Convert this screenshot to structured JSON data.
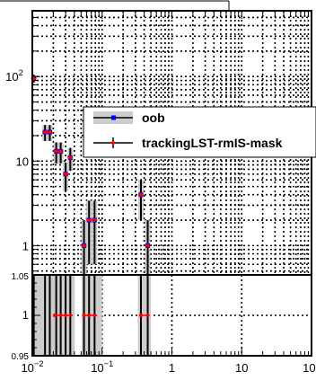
{
  "chart_data": [
    {
      "type": "scatter",
      "title": "",
      "xlabel": "",
      "ylabel": "",
      "x_scale": "log",
      "y_scale": "log",
      "xlim": [
        0.01,
        100
      ],
      "ylim": [
        0.45,
        600
      ],
      "grid": true,
      "legend_placement": "right",
      "y_tick_labels": [
        {
          "value": 1,
          "label": "1"
        },
        {
          "value": 10,
          "label": "10"
        },
        {
          "value": 100,
          "label": "10",
          "exp": "2"
        }
      ],
      "series": [
        {
          "name": "oob",
          "color": "#0000ff",
          "style": "marker-filled-band",
          "points": [
            {
              "x": 0.0105,
              "y": 95,
              "err": 10
            },
            {
              "x": 0.0152,
              "y": 22,
              "err": 4.7
            },
            {
              "x": 0.0178,
              "y": 22,
              "err": 4.7
            },
            {
              "x": 0.022,
              "y": 13,
              "err": 3.6
            },
            {
              "x": 0.0255,
              "y": 13,
              "err": 3.6
            },
            {
              "x": 0.03,
              "y": 7,
              "err": 2.6
            },
            {
              "x": 0.035,
              "y": 11,
              "err": 3.3
            },
            {
              "x": 0.055,
              "y": 1,
              "err": 1.0
            },
            {
              "x": 0.065,
              "y": 2,
              "err": 1.4
            },
            {
              "x": 0.078,
              "y": 2,
              "err": 1.4
            },
            {
              "x": 0.36,
              "y": 4,
              "err": 2.0
            },
            {
              "x": 0.45,
              "y": 1,
              "err": 1.0
            }
          ]
        },
        {
          "name": "trackingLST-rmIS-mask",
          "color": "#ff0000",
          "style": "marker-errorbar",
          "points": [
            {
              "x": 0.0105,
              "y": 95,
              "err": 10
            },
            {
              "x": 0.0152,
              "y": 22,
              "err": 4.7
            },
            {
              "x": 0.0178,
              "y": 22,
              "err": 4.7
            },
            {
              "x": 0.022,
              "y": 13,
              "err": 3.6
            },
            {
              "x": 0.0255,
              "y": 13,
              "err": 3.6
            },
            {
              "x": 0.03,
              "y": 7,
              "err": 2.6
            },
            {
              "x": 0.035,
              "y": 11,
              "err": 3.3
            },
            {
              "x": 0.055,
              "y": 1,
              "err": 1.0
            },
            {
              "x": 0.065,
              "y": 2,
              "err": 1.4
            },
            {
              "x": 0.078,
              "y": 2,
              "err": 1.4
            },
            {
              "x": 0.36,
              "y": 4,
              "err": 2.0
            },
            {
              "x": 0.45,
              "y": 1,
              "err": 1.0
            }
          ]
        }
      ]
    },
    {
      "type": "scatter",
      "title": "",
      "xlabel": "",
      "ylabel": "",
      "x_scale": "log",
      "xlim": [
        0.01,
        100
      ],
      "ylim": [
        0.95,
        1.05
      ],
      "grid": true,
      "y_tick_labels": [
        {
          "value": 0.95,
          "label": "0.95"
        },
        {
          "value": 1.0,
          "label": "1"
        },
        {
          "value": 1.05,
          "label": "1.05"
        }
      ],
      "x_tick_labels": [
        {
          "value": 0.01,
          "label": "10",
          "exp": "−2"
        },
        {
          "value": 0.1,
          "label": "10",
          "exp": "−1"
        },
        {
          "value": 1,
          "label": "1",
          "exp": ""
        },
        {
          "value": 10,
          "label": "10",
          "exp": ""
        },
        {
          "value": 100,
          "label": "10",
          "exp": "2"
        }
      ],
      "bands": [
        {
          "x0": 0.01,
          "x1": 0.0405
        },
        {
          "x0": 0.051,
          "x1": 0.1
        },
        {
          "x0": 0.325,
          "x1": 0.5
        }
      ],
      "ratio_points": [
        {
          "x": 0.021,
          "y": 1
        },
        {
          "x": 0.0255,
          "y": 1
        },
        {
          "x": 0.03,
          "y": 1
        },
        {
          "x": 0.035,
          "y": 1
        },
        {
          "x": 0.055,
          "y": 1
        },
        {
          "x": 0.065,
          "y": 1
        },
        {
          "x": 0.078,
          "y": 1
        },
        {
          "x": 0.36,
          "y": 1
        },
        {
          "x": 0.45,
          "y": 1
        }
      ],
      "error_bar_x": [
        0.0105,
        0.0152,
        0.0178,
        0.022,
        0.0255,
        0.03,
        0.035,
        0.055,
        0.065,
        0.078,
        0.36,
        0.45
      ]
    }
  ]
}
